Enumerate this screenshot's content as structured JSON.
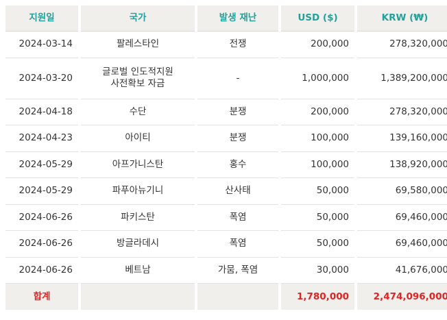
{
  "headers": {
    "date": "지원일",
    "country": "국가",
    "disaster": "발생 재난",
    "usd": "USD ($)",
    "krw": "KRW (₩)"
  },
  "rows": [
    {
      "date": "2024-03-14",
      "country": "팔레스타인",
      "disaster": "전쟁",
      "usd": "200,000",
      "krw": "278,320,000"
    },
    {
      "date": "2024-03-20",
      "country": "글로벌 인도적지원\n사전확보 자금",
      "disaster": "-",
      "usd": "1,000,000",
      "krw": "1,389,200,000"
    },
    {
      "date": "2024-04-18",
      "country": "수단",
      "disaster": "분쟁",
      "usd": "200,000",
      "krw": "278,320,000"
    },
    {
      "date": "2024-04-23",
      "country": "아이티",
      "disaster": "분쟁",
      "usd": "100,000",
      "krw": "139,160,000"
    },
    {
      "date": "2024-05-29",
      "country": "아프가니스탄",
      "disaster": "홍수",
      "usd": "100,000",
      "krw": "138,920,000"
    },
    {
      "date": "2024-05-29",
      "country": "파푸아뉴기니",
      "disaster": "산사태",
      "usd": "50,000",
      "krw": "69,580,000"
    },
    {
      "date": "2024-06-26",
      "country": "파키스탄",
      "disaster": "폭염",
      "usd": "50,000",
      "krw": "69,460,000"
    },
    {
      "date": "2024-06-26",
      "country": "방글라데시",
      "disaster": "폭염",
      "usd": "50,000",
      "krw": "69,460,000"
    },
    {
      "date": "2024-06-26",
      "country": "베트남",
      "disaster": "가뭄, 폭염",
      "usd": "30,000",
      "krw": "41,676,000"
    }
  ],
  "total": {
    "label": "합계",
    "country": "",
    "disaster": "",
    "usd": "1,780,000",
    "krw": "2,474,096,000"
  },
  "colors": {
    "header_text": "#23a19a",
    "header_bg": "#f0efec",
    "total_text": "#e02424"
  }
}
